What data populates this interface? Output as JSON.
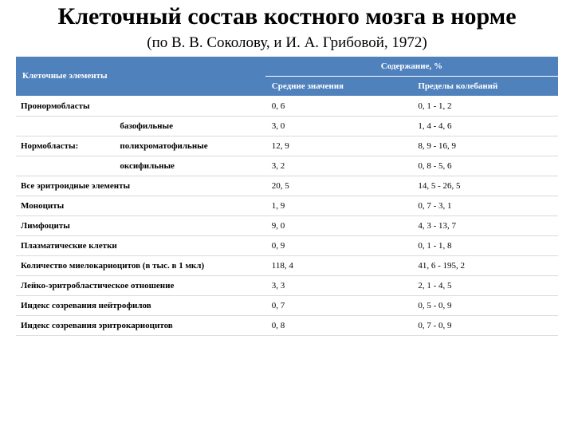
{
  "title": "Клеточный состав костного мозга в норме",
  "subtitle": "(по В. В. Соколову, и И. А. Грибовой, 1972)",
  "table": {
    "header_left": "Клеточные элементы",
    "header_group": "Содержание, %",
    "header_mean": "Средние значения",
    "header_range": "Пределы колебаний",
    "rows": [
      {
        "label1": "Пронормобласты",
        "label2": "",
        "mean": "0, 6",
        "range": "0, 1 - 1, 2"
      },
      {
        "label1": "",
        "label2": "базофильные",
        "mean": "3, 0",
        "range": "1, 4 - 4, 6"
      },
      {
        "label1": "Нормобласты:",
        "label2": "полихроматофильные",
        "mean": "12, 9",
        "range": "8, 9 - 16, 9"
      },
      {
        "label1": "",
        "label2": "оксифильные",
        "mean": "3, 2",
        "range": "0, 8 - 5, 6"
      },
      {
        "label1": "Все эритроидные элементы",
        "label2": "",
        "mean": "20, 5",
        "range": "14, 5 - 26, 5"
      },
      {
        "label1": "Моноциты",
        "label2": "",
        "mean": "1, 9",
        "range": "0, 7 - 3, 1"
      },
      {
        "label1": "Лимфоциты",
        "label2": "",
        "mean": "9, 0",
        "range": "4, 3 - 13, 7"
      },
      {
        "label1": "Плазматические клетки",
        "label2": "",
        "mean": "0, 9",
        "range": "0, 1 - 1, 8"
      },
      {
        "label1": "Количество миелокариоцитов (в тыс. в 1 мкл)",
        "label2": "",
        "mean": "118, 4",
        "range": "41, 6 - 195, 2"
      },
      {
        "label1": "Лейко-эритробластическое отношение",
        "label2": "",
        "mean": "3, 3",
        "range": "2, 1 - 4, 5"
      },
      {
        "label1": "Индекс созревания нейтрофилов",
        "label2": "",
        "mean": "0, 7",
        "range": "0, 5 - 0, 9"
      },
      {
        "label1": "Индекс созревания эритрокариоцитов",
        "label2": "",
        "mean": "0, 8",
        "range": "0, 7 - 0, 9"
      }
    ]
  },
  "colors": {
    "header_bg": "#4f81bd",
    "header_fg": "#ffffff",
    "row_border": "#d9d9d9"
  }
}
